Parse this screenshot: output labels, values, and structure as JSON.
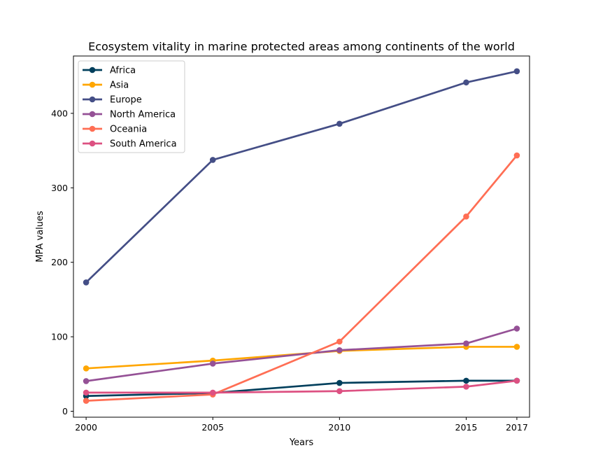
{
  "chart_data": {
    "type": "line",
    "title": "Ecosystem vitality in marine protected areas among continents of the world",
    "xlabel": "Years",
    "ylabel": "MPA values",
    "x": [
      2000,
      2005,
      2010,
      2015,
      2017
    ],
    "x_tick_labels": [
      "2000",
      "2005",
      "2010",
      "2015",
      "2017"
    ],
    "y_ticks": [
      0,
      100,
      200,
      300,
      400
    ],
    "y_tick_labels": [
      "0",
      "100",
      "200",
      "300",
      "400"
    ],
    "xlim": [
      1999.5,
      2017.5
    ],
    "ylim": [
      -8,
      477
    ],
    "grid": false,
    "legend_position": "top-left",
    "series": [
      {
        "name": "Africa",
        "color": "#003f5c",
        "values": [
          20.5,
          24.5,
          38,
          41,
          41
        ]
      },
      {
        "name": "Asia",
        "color": "#ffa600",
        "values": [
          57.5,
          68,
          81,
          86.5,
          86.5
        ]
      },
      {
        "name": "Europe",
        "color": "#444e86",
        "values": [
          173,
          337.5,
          386,
          441.5,
          456.5
        ]
      },
      {
        "name": "North America",
        "color": "#955196",
        "values": [
          40.5,
          64,
          82,
          91,
          111
        ]
      },
      {
        "name": "Oceania",
        "color": "#ff6e54",
        "values": [
          14,
          22.5,
          93.5,
          261.5,
          343.5
        ]
      },
      {
        "name": "South America",
        "color": "#dd5182",
        "values": [
          25,
          25,
          27,
          33,
          41
        ]
      }
    ]
  }
}
